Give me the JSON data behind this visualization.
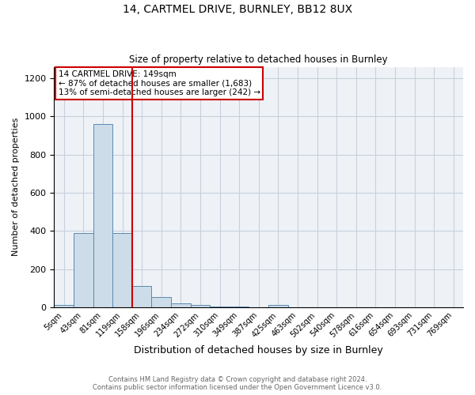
{
  "title1": "14, CARTMEL DRIVE, BURNLEY, BB12 8UX",
  "title2": "Size of property relative to detached houses in Burnley",
  "xlabel": "Distribution of detached houses by size in Burnley",
  "ylabel": "Number of detached properties",
  "bar_labels": [
    "5sqm",
    "43sqm",
    "81sqm",
    "119sqm",
    "158sqm",
    "196sqm",
    "234sqm",
    "272sqm",
    "310sqm",
    "349sqm",
    "387sqm",
    "425sqm",
    "463sqm",
    "502sqm",
    "540sqm",
    "578sqm",
    "616sqm",
    "654sqm",
    "693sqm",
    "731sqm",
    "769sqm"
  ],
  "bar_values": [
    10,
    390,
    960,
    390,
    110,
    55,
    20,
    10,
    5,
    5,
    0,
    10,
    0,
    0,
    0,
    0,
    0,
    0,
    0,
    0,
    0
  ],
  "bar_color": "#ccdce8",
  "bar_edge_color": "#5a8ab0",
  "annotation_line1": "14 CARTMEL DRIVE: 149sqm",
  "annotation_line2": "← 87% of detached houses are smaller (1,683)",
  "annotation_line3": "13% of semi-detached houses are larger (242) →",
  "vline_color": "#cc0000",
  "vline_x": 3.5,
  "ylim": [
    0,
    1260
  ],
  "yticks": [
    0,
    200,
    400,
    600,
    800,
    1000,
    1200
  ],
  "footnote1": "Contains HM Land Registry data © Crown copyright and database right 2024.",
  "footnote2": "Contains public sector information licensed under the Open Government Licence v3.0.",
  "bg_color": "#eef2f7",
  "grid_color": "#c8d0dc"
}
